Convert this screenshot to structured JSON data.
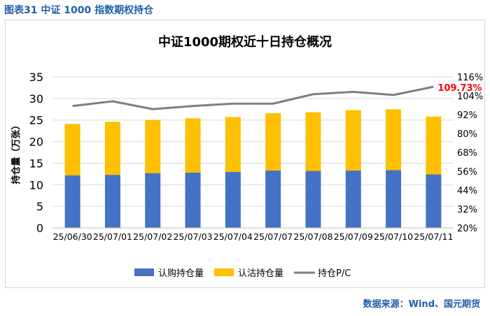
{
  "figure_title": "图表31  中证 1000 指数期权持仓",
  "source": "数据来源：Wind、国元期货",
  "chart_data": {
    "type": "bar",
    "stacked": true,
    "title": "中证1000期权近十日持仓概况",
    "ylabel": "持仓量（万张）",
    "ylim": [
      0,
      35
    ],
    "y_ticks": [
      "0",
      "5",
      "10",
      "15",
      "20",
      "25",
      "30",
      "35"
    ],
    "y2lim": [
      0.2,
      1.16
    ],
    "y2_ticks": [
      "20%",
      "32%",
      "44%",
      "56%",
      "68%",
      "80%",
      "92%",
      "104%",
      "116%"
    ],
    "categories": [
      "25/06/30",
      "25/07/01",
      "25/07/02",
      "25/07/03",
      "25/07/04",
      "25/07/07",
      "25/07/08",
      "25/07/09",
      "25/07/10",
      "25/07/11"
    ],
    "series": [
      {
        "name": "认购持仓量",
        "type": "bar",
        "color": "#4472c4",
        "values": [
          12.2,
          12.3,
          12.7,
          12.8,
          13.0,
          13.3,
          13.2,
          13.3,
          13.4,
          12.4
        ]
      },
      {
        "name": "认沽持仓量",
        "type": "bar",
        "color": "#ffc000",
        "values": [
          11.9,
          12.3,
          12.3,
          12.6,
          12.7,
          13.3,
          13.6,
          14.0,
          14.1,
          13.4
        ]
      },
      {
        "name": "持仓P/C",
        "type": "line",
        "axis": "right",
        "color": "#7f7f7f",
        "values": [
          0.975,
          1.005,
          0.955,
          0.975,
          0.99,
          0.99,
          1.05,
          1.065,
          1.045,
          1.0973
        ]
      }
    ],
    "annotation": {
      "text": "109.73%",
      "color": "#ff0000"
    },
    "legend_position": "bottom",
    "grid": true
  }
}
